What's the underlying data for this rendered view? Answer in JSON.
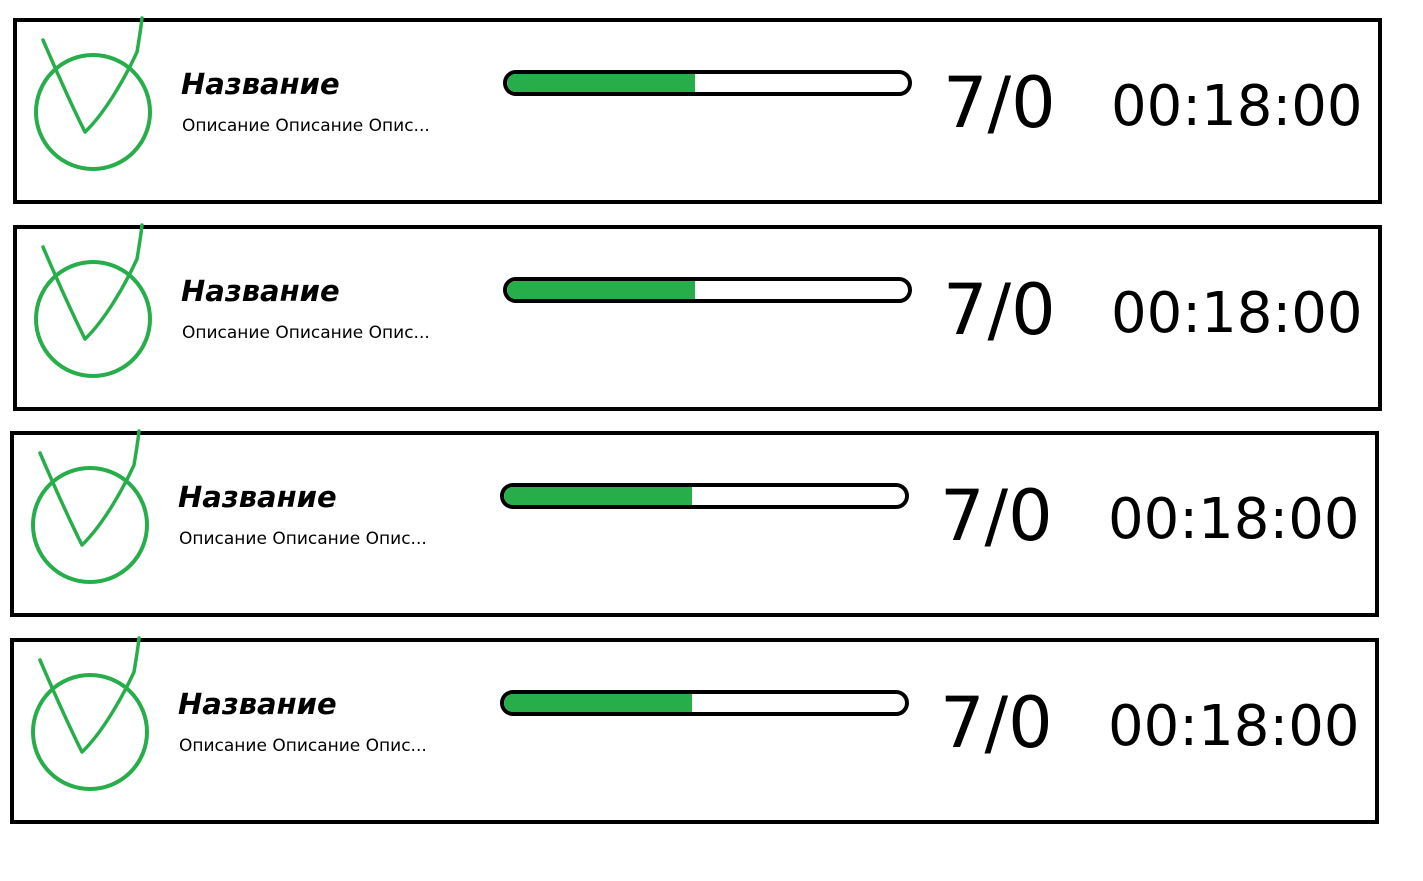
{
  "colors": {
    "accent": "#27AE4A",
    "border": "#000000",
    "background": "#FFFFFF"
  },
  "tasks": [
    {
      "icon": "checkmark-circle-icon",
      "title": "Название",
      "description": "Описание Описание Опис...",
      "progress": 0.47,
      "count": "7/0",
      "time": "00:18:00"
    },
    {
      "icon": "checkmark-circle-icon",
      "title": "Название",
      "description": "Описание Описание Опис...",
      "progress": 0.47,
      "count": "7/0",
      "time": "00:18:00"
    },
    {
      "icon": "checkmark-circle-icon",
      "title": "Название",
      "description": "Описание Описание Опис...",
      "progress": 0.47,
      "count": "7/0",
      "time": "00:18:00"
    },
    {
      "icon": "checkmark-circle-icon",
      "title": "Название",
      "description": "Описание Описание Опис...",
      "progress": 0.47,
      "count": "7/0",
      "time": "00:18:00"
    }
  ]
}
